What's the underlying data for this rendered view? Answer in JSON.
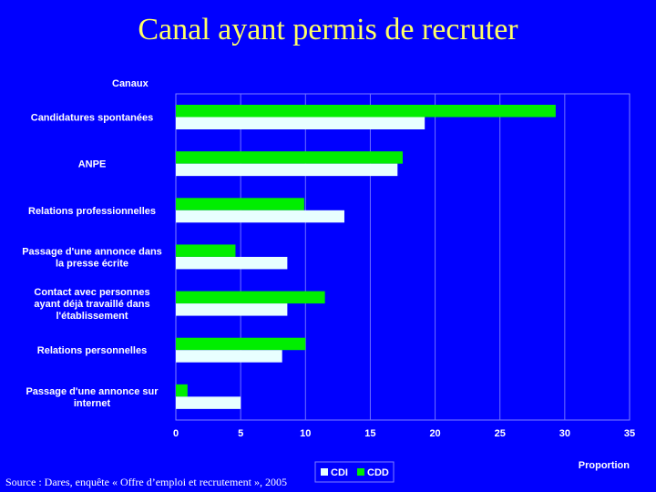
{
  "title": "Canal ayant permis de recruter",
  "source": "Source : Dares, enquête « Offre d’emploi et recrutement », 2005",
  "colors": {
    "background": "#0000ff",
    "title": "#ffff66",
    "cdd": "#00ee00",
    "cdi": "#e8ffff",
    "grid": "#6f6fff"
  },
  "chart_data": {
    "type": "bar",
    "orientation": "horizontal",
    "ylabel": "Canaux",
    "xlabel": "Proportion",
    "xlim": [
      0,
      35
    ],
    "xticks": [
      0,
      5,
      10,
      15,
      20,
      25,
      30,
      35
    ],
    "grid": true,
    "legend": "bottom-right",
    "categories": [
      [
        "Candidatures spontanées"
      ],
      [
        "ANPE"
      ],
      [
        "Relations professionnelles"
      ],
      [
        "Passage d'une annonce dans",
        "la presse écrite"
      ],
      [
        "Contact avec personnes",
        "ayant déjà travaillé dans",
        "l'établissement"
      ],
      [
        "Relations personnelles"
      ],
      [
        "Passage d'une annonce sur",
        "internet"
      ]
    ],
    "series": [
      {
        "name": "CDD",
        "values": [
          29.3,
          17.5,
          9.9,
          4.6,
          11.5,
          10.0,
          0.9
        ]
      },
      {
        "name": "CDI",
        "values": [
          19.2,
          17.1,
          13.0,
          8.6,
          8.6,
          8.2,
          5.0
        ]
      }
    ]
  }
}
